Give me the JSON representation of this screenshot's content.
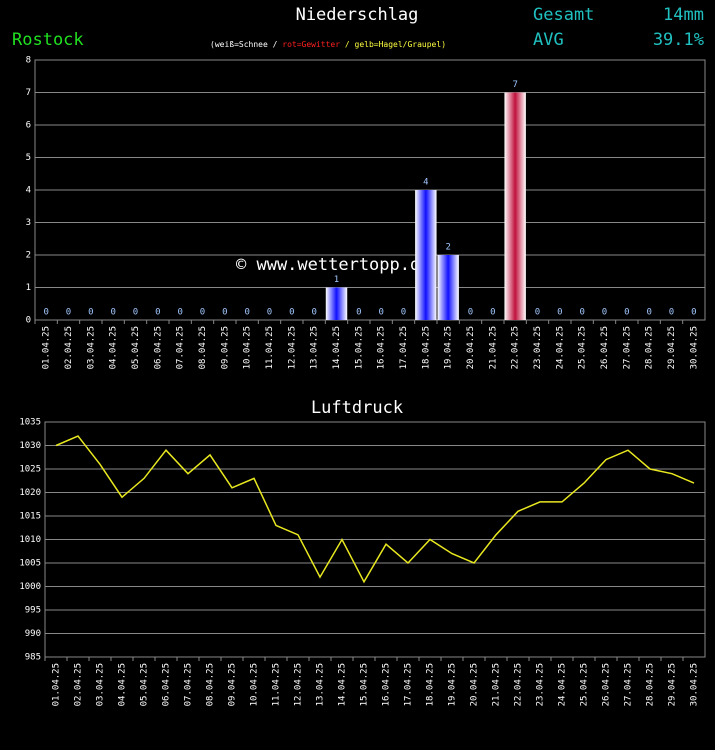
{
  "chart_data": [
    {
      "type": "bar",
      "title": "Niederschlag",
      "location": "Rostock",
      "stats": [
        {
          "label": "Gesamt",
          "value": "14mm"
        },
        {
          "label": "AVG",
          "value": "39.1%"
        }
      ],
      "subtitle_parts": [
        {
          "text": "(weiß=Schnee / ",
          "color": "#ffffff"
        },
        {
          "text": "rot=Gewitter",
          "color": "#ff2020"
        },
        {
          "text": " / gelb=Hagel/Graupel)",
          "color": "#ffff40"
        }
      ],
      "watermark": "© www.wettertopp.de",
      "categories": [
        "01.04.25",
        "02.04.25",
        "03.04.25",
        "04.04.25",
        "05.04.25",
        "06.04.25",
        "07.04.25",
        "08.04.25",
        "09.04.25",
        "10.04.25",
        "11.04.25",
        "12.04.25",
        "13.04.25",
        "14.04.25",
        "15.04.25",
        "16.04.25",
        "17.04.25",
        "18.04.25",
        "19.04.25",
        "20.04.25",
        "21.04.25",
        "22.04.25",
        "23.04.25",
        "24.04.25",
        "25.04.25",
        "26.04.25",
        "27.04.25",
        "28.04.25",
        "29.04.25",
        "30.04.25"
      ],
      "values": [
        0,
        0,
        0,
        0,
        0,
        0,
        0,
        0,
        0,
        0,
        0,
        0,
        0,
        1,
        0,
        0,
        0,
        4,
        2,
        0,
        0,
        7,
        0,
        0,
        0,
        0,
        0,
        0,
        0,
        0
      ],
      "colors": [
        "#1010ff",
        "#1010ff",
        "#1010ff",
        "#1010ff",
        "#1010ff",
        "#1010ff",
        "#1010ff",
        "#1010ff",
        "#1010ff",
        "#1010ff",
        "#1010ff",
        "#1010ff",
        "#1010ff",
        "#1010ff",
        "#1010ff",
        "#1010ff",
        "#1010ff",
        "#1010ff",
        "#1010ff",
        "#1010ff",
        "#1010ff",
        "#c0103c",
        "#1010ff",
        "#1010ff",
        "#1010ff",
        "#1010ff",
        "#1010ff",
        "#1010ff",
        "#1010ff",
        "#1010ff"
      ],
      "ylim": [
        0,
        8
      ],
      "yticks": [
        0,
        1,
        2,
        3,
        4,
        5,
        6,
        7,
        8
      ],
      "grid": true
    },
    {
      "type": "line",
      "title": "Luftdruck",
      "color": "#e8e820",
      "categories": [
        "01.04.25",
        "02.04.25",
        "03.04.25",
        "04.04.25",
        "05.04.25",
        "06.04.25",
        "07.04.25",
        "08.04.25",
        "09.04.25",
        "10.04.25",
        "11.04.25",
        "12.04.25",
        "13.04.25",
        "14.04.25",
        "15.04.25",
        "16.04.25",
        "17.04.25",
        "18.04.25",
        "19.04.25",
        "20.04.25",
        "21.04.25",
        "22.04.25",
        "23.04.25",
        "24.04.25",
        "25.04.25",
        "26.04.25",
        "27.04.25",
        "28.04.25",
        "29.04.25",
        "30.04.25"
      ],
      "values": [
        1030,
        1032,
        1026,
        1019,
        1023,
        1029,
        1024,
        1028,
        1021,
        1023,
        1013,
        1011,
        1002,
        1010,
        1001,
        1009,
        1005,
        1010,
        1007,
        1005,
        1011,
        1016,
        1018,
        1018,
        1022,
        1027,
        1029,
        1025,
        1024,
        1022
      ],
      "ylim": [
        985,
        1035
      ],
      "yticks": [
        985,
        990,
        995,
        1000,
        1005,
        1010,
        1015,
        1020,
        1025,
        1030,
        1035
      ],
      "grid": true
    }
  ]
}
